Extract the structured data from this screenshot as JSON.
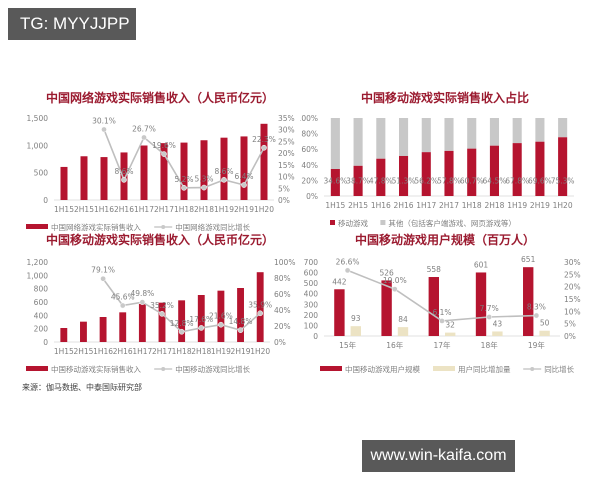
{
  "overlay": {
    "top_tag": "TG: MYYJJPP",
    "watermark": "www.win-kaifa.com"
  },
  "source_note": "来源：伽马数据、中泰国际研究部",
  "colors": {
    "primary_bar": "#b5142f",
    "secondary_bar": "#c8c8c8",
    "increment_bar": "#ece3c4",
    "line": "#bfbfbf",
    "line_marker": "#c9c9c9",
    "title": "#9b1b30"
  },
  "chart_data": [
    {
      "id": "online_game_revenue",
      "type": "bar+line",
      "title": "中国网络游戏实际销售收入（人民币亿元）",
      "categories": [
        "1H15",
        "2H15",
        "1H16",
        "2H16",
        "1H17",
        "2H17",
        "1H18",
        "2H18",
        "1H19",
        "2H19",
        "1H20"
      ],
      "series": [
        {
          "name": "中国网络游戏实际销售收入",
          "type": "bar",
          "axis": "left",
          "values": [
            605,
            800,
            785,
            870,
            997,
            1040,
            1050,
            1093,
            1140,
            1163,
            1394
          ]
        },
        {
          "name": "中国网络游戏同比增长",
          "type": "line",
          "axis": "right",
          "values": [
            null,
            null,
            30.1,
            8.6,
            26.7,
            19.6,
            5.2,
            5.3,
            8.6,
            6.4,
            22.3
          ],
          "labels": [
            "",
            "",
            "30.1%",
            "8.6%",
            "26.7%",
            "19.6%",
            "5.2%",
            "5.3%",
            "8.6%",
            "6.4%",
            "22.3%"
          ]
        }
      ],
      "y_left": {
        "ticks": [
          "0",
          "500",
          "1,000",
          "1,500"
        ],
        "range": [
          0,
          1500
        ]
      },
      "y_right": {
        "ticks": [
          "0%",
          "5%",
          "10%",
          "15%",
          "20%",
          "25%",
          "30%",
          "35%"
        ],
        "range": [
          0,
          35
        ]
      },
      "legend": [
        "中国网络游戏实际销售收入",
        "中国网络游戏同比增长"
      ],
      "legend_position": "bottom"
    },
    {
      "id": "mobile_share",
      "type": "stacked_bar_100",
      "title": "中国移动游戏实际销售收入占比",
      "categories": [
        "1H15",
        "2H15",
        "1H16",
        "2H16",
        "1H17",
        "2H17",
        "1H18",
        "2H18",
        "1H19",
        "2H19",
        "1H20"
      ],
      "series": [
        {
          "name": "移动游戏",
          "values": [
            34.6,
            38.7,
            47.8,
            51.3,
            56.2,
            57.8,
            60.7,
            64.5,
            67.8,
            69.6,
            75.3
          ],
          "labels": [
            "34.6%",
            "38.7%",
            "47.8%",
            "51.3%",
            "56.2%",
            "57.8%",
            "60.7%",
            "64.5%",
            "67.8%",
            "69.6%",
            "75.3%"
          ]
        },
        {
          "name": "其他（包括客户端游戏、网页游戏等）",
          "values": [
            65.4,
            61.3,
            52.2,
            48.7,
            43.8,
            42.2,
            39.3,
            35.5,
            32.2,
            30.4,
            24.7
          ]
        }
      ],
      "y_left": {
        "ticks": [
          "0%",
          "20%",
          "40%",
          "60%",
          "80%",
          "100%"
        ],
        "range": [
          0,
          100
        ]
      },
      "legend": [
        "移动游戏",
        "其他（包括客户端游戏、网页游戏等）"
      ],
      "legend_position": "bottom"
    },
    {
      "id": "mobile_game_revenue",
      "type": "bar+line",
      "title": "中国移动游戏实际销售收入（人民币亿元）",
      "categories": [
        "1H15",
        "2H15",
        "1H16",
        "2H16",
        "1H17",
        "2H17",
        "1H18",
        "2H18",
        "1H19",
        "2H19",
        "1H20"
      ],
      "series": [
        {
          "name": "中国移动游戏实际销售收入",
          "type": "bar",
          "axis": "left",
          "values": [
            210,
            305,
            375,
            445,
            570,
            590,
            625,
            705,
            770,
            810,
            1047
          ]
        },
        {
          "name": "中国移动游戏同比增长",
          "type": "line",
          "axis": "right",
          "values": [
            null,
            null,
            79.1,
            45.6,
            49.8,
            35.2,
            12.8,
            17.6,
            21.6,
            14.8,
            35.9
          ],
          "labels": [
            "",
            "",
            "79.1%",
            "45.6%",
            "49.8%",
            "35.2%",
            "12.8%",
            "17.6%",
            "21.6%",
            "14.8%",
            "35.9%"
          ]
        }
      ],
      "y_left": {
        "ticks": [
          "0",
          "200",
          "400",
          "600",
          "800",
          "1,000",
          "1,200"
        ],
        "range": [
          0,
          1200
        ]
      },
      "y_right": {
        "ticks": [
          "0%",
          "20%",
          "40%",
          "60%",
          "80%",
          "100%"
        ],
        "range": [
          0,
          100
        ]
      },
      "legend": [
        "中国移动游戏实际销售收入",
        "中国移动游戏同比增长"
      ],
      "legend_position": "bottom"
    },
    {
      "id": "mobile_users",
      "type": "grouped_bar+line",
      "title": "中国移动游戏用户规模（百万人）",
      "categories": [
        "15年",
        "16年",
        "17年",
        "18年",
        "19年"
      ],
      "series": [
        {
          "name": "中国移动游戏用户规模",
          "type": "bar",
          "axis": "left",
          "values": [
            442,
            526,
            558,
            601,
            651
          ]
        },
        {
          "name": "用户同比增加量",
          "type": "bar",
          "axis": "left",
          "values": [
            93,
            84,
            32,
            43,
            50
          ]
        },
        {
          "name": "同比增长",
          "type": "line",
          "axis": "right",
          "values": [
            26.6,
            19.0,
            6.1,
            7.7,
            8.3
          ],
          "labels": [
            "26.6%",
            "19.0%",
            "6.1%",
            "7.7%",
            "8.3%"
          ]
        }
      ],
      "y_left": {
        "ticks": [
          "0",
          "100",
          "200",
          "300",
          "400",
          "500",
          "600",
          "700"
        ],
        "range": [
          0,
          700
        ]
      },
      "y_right": {
        "ticks": [
          "0%",
          "5%",
          "10%",
          "15%",
          "20%",
          "25%",
          "30%"
        ],
        "range": [
          0,
          30
        ]
      },
      "legend": [
        "中国移动游戏用户规模",
        "用户同比增加量",
        "同比增长"
      ],
      "legend_position": "bottom"
    }
  ]
}
